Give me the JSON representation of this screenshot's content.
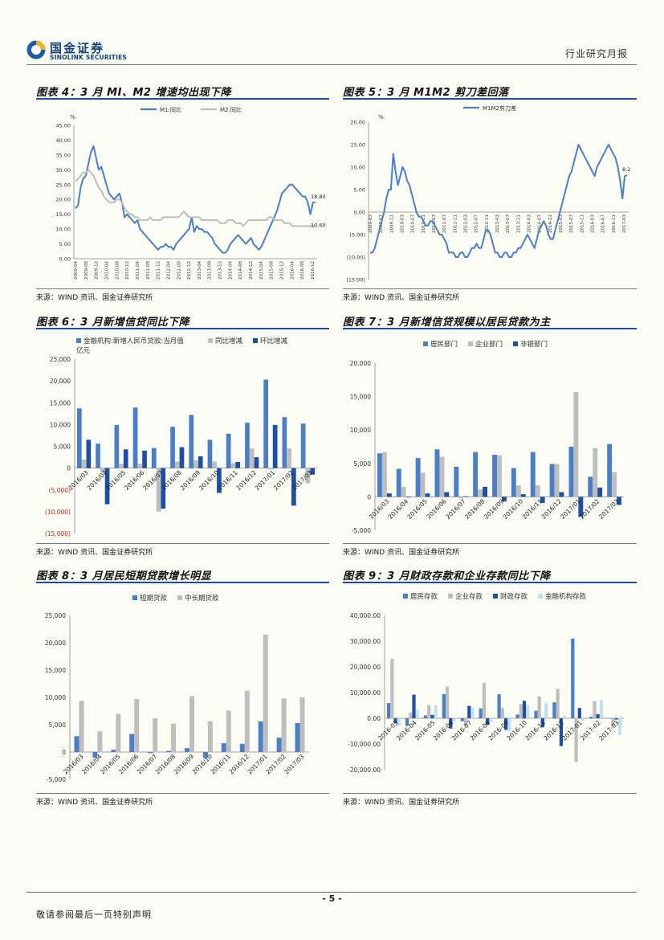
{
  "header": {
    "logo_cn": "国金证券",
    "logo_en": "SINOLINK SECURITIES",
    "report_type": "行业研究月报"
  },
  "figures": [
    {
      "title": "图表 4：3 月 MI、M2 增速均出现下降",
      "source": "来源：WIND 资讯、国金证券研究所"
    },
    {
      "title": "图表 5：3 月 M1M2 剪刀差回落",
      "source": "来源：WIND 资讯、国金证券研究所"
    },
    {
      "title": "图表 6：3 月新增信贷同比下降",
      "source": "来源：WIND 资讯、国金证券研究所"
    },
    {
      "title": "图表 7：3 月新增信贷规模以居民贷款为主",
      "source": "来源：WIND 资讯、国金证券研究所"
    },
    {
      "title": "图表 8：3 月居民短期贷款增长明显",
      "source": "来源：WIND 资讯、国金证券研究所"
    },
    {
      "title": "图表 9：3 月财政存款和企业存款同比下降",
      "source": "来源：WIND 资讯、国金证券研究所"
    }
  ],
  "footer": {
    "page": "- 5 -",
    "disclaimer": "敬请参阅最后一页特别声明"
  },
  "chart_data": [
    {
      "type": "line",
      "unit": "%",
      "series": [
        {
          "name": "M1:同比",
          "color": "#4a7ec8",
          "values": [
            17,
            18,
            24,
            27,
            28,
            32,
            36,
            38,
            34,
            30,
            31,
            28,
            25,
            22,
            21,
            20,
            21,
            22,
            19,
            14,
            15,
            14,
            13,
            12,
            13,
            10,
            9,
            8,
            7,
            6,
            5,
            4,
            3,
            4,
            4,
            5,
            4,
            4,
            3,
            5,
            6,
            7,
            8,
            9,
            10,
            14,
            9,
            11,
            10,
            10,
            9,
            9,
            8,
            7,
            5,
            4,
            3,
            2,
            2,
            3,
            5,
            6,
            7,
            8,
            7,
            6,
            5,
            6,
            7,
            5,
            4,
            3,
            4,
            6,
            8,
            10,
            12,
            14,
            16,
            19,
            22,
            23,
            24,
            25,
            25,
            24,
            23,
            22,
            21,
            21,
            19,
            15,
            19,
            19
          ]
        },
        {
          "name": "M2:同比",
          "color": "#bebebe",
          "values": [
            26,
            27,
            28,
            29,
            29,
            30,
            29,
            28,
            26,
            24,
            23,
            21,
            20,
            19,
            19,
            19,
            20,
            20,
            19,
            17,
            16,
            15,
            15,
            14,
            14,
            13,
            13,
            13,
            13,
            14,
            13,
            13,
            13,
            13,
            14,
            14,
            14,
            14,
            14,
            14,
            14,
            15,
            16,
            15,
            14,
            14,
            14,
            14,
            14,
            13,
            13,
            13,
            13,
            13,
            13,
            13,
            12,
            12,
            12,
            13,
            13,
            13,
            12,
            12,
            12,
            11,
            12,
            13,
            13,
            13,
            13,
            13,
            13,
            13,
            13,
            14,
            14,
            13,
            13,
            13,
            13,
            12,
            12,
            12,
            11,
            11,
            11,
            11,
            11,
            11,
            11,
            11,
            11,
            11
          ]
        }
      ],
      "x_tick_labels": [
        "2009-04",
        "2009-08",
        "2009-12",
        "2010-04",
        "2010-08",
        "2010-12",
        "2011-04",
        "2011-08",
        "2011-12",
        "2012-04",
        "2012-08",
        "2012-12",
        "2013-04",
        "2013-08",
        "2013-12",
        "2014-04",
        "2014-08",
        "2014-12",
        "2015-04",
        "2015-08",
        "2015-12",
        "2016-04",
        "2016-08",
        "2016-12"
      ],
      "y_tick_labels": [
        "0.00",
        "5.00",
        "10.00",
        "15.00",
        "20.00",
        "25.00",
        "30.00",
        "35.00",
        "40.00",
        "45.00"
      ],
      "annotations": [
        "18.80",
        "10.60"
      ],
      "ylim": [
        0,
        45
      ]
    },
    {
      "type": "line",
      "unit": "%",
      "series": [
        {
          "name": "M1M2剪刀差",
          "color": "#4a7ec8",
          "values": [
            -9,
            -9,
            -8,
            -6,
            -4,
            -2,
            0,
            3,
            5,
            5,
            13,
            9,
            6,
            8,
            10,
            9,
            7,
            6,
            4,
            2,
            0,
            -1,
            -1,
            -2,
            -3,
            -3,
            -2,
            -2,
            -3,
            -4,
            -5,
            -5,
            -6,
            -7,
            -9,
            -9,
            -9,
            -10,
            -10,
            -9,
            -9,
            -10,
            -10,
            -9,
            -8,
            -8,
            -7,
            -8,
            -8,
            -6,
            -4,
            -4,
            -5,
            -7,
            -9,
            -9,
            -10,
            -10,
            -9,
            -9,
            -10,
            -10,
            -9,
            -9,
            -8,
            -8,
            -7,
            -6,
            -5,
            -6,
            -7,
            -8,
            -6,
            -4,
            -3,
            -2,
            -3,
            -5,
            -6,
            -6,
            -4,
            -2,
            0,
            2,
            4,
            6,
            8,
            9,
            11,
            13,
            15,
            14,
            13,
            12,
            11,
            10,
            9,
            8,
            10,
            11,
            12,
            13,
            14,
            15,
            14,
            13,
            12,
            10,
            7,
            3,
            8,
            8.2
          ]
        }
      ],
      "x_tick_labels": [
        "2009-03",
        "2009-07",
        "2009-11",
        "2010-03",
        "2010-07",
        "2010-11",
        "2011-03",
        "2011-07",
        "2011-11",
        "2012-03",
        "2012-07",
        "2012-11",
        "2013-03",
        "2013-07",
        "2013-11",
        "2014-03",
        "2014-07",
        "2014-11",
        "2015-03",
        "2015-07",
        "2015-11",
        "2016-03",
        "2016-07",
        "2016-11",
        "2017-03"
      ],
      "y_tick_labels": [
        "(15.00)",
        "(10.00)",
        "(5.00)",
        "0.00",
        "5.00",
        "10.00",
        "15.00",
        "20.00"
      ],
      "annotations": [
        "8.2"
      ],
      "ylim": [
        -15,
        20
      ]
    },
    {
      "type": "bar",
      "unit": "亿元",
      "categories": [
        "2016/03",
        "2016/04",
        "2016/05",
        "2016/06",
        "2016/07",
        "2016/08",
        "2016/09",
        "2016/10",
        "2016/11",
        "2016/12",
        "2017/01",
        "2017/02",
        "2017/03"
      ],
      "series": [
        {
          "name": "金融机构:新增人民币贷款:当月值",
          "color": "#4a7ec8",
          "values": [
            13700,
            5600,
            9900,
            13900,
            4600,
            9500,
            12200,
            6500,
            7900,
            10400,
            20300,
            11700,
            10200
          ]
        },
        {
          "name": "同比增减",
          "color": "#bebebe",
          "values": [
            2000,
            -1000,
            1000,
            1000,
            -10000,
            1500,
            1800,
            1500,
            1100,
            4500,
            -300,
            4500,
            -3500
          ]
        },
        {
          "name": "环比增减",
          "color": "#1e4fa5",
          "values": [
            6500,
            -8300,
            4300,
            4000,
            -9300,
            4800,
            2700,
            -5700,
            1400,
            2500,
            9900,
            -8600,
            -1500
          ]
        }
      ],
      "y_tick_labels": [
        "(15,000)",
        "(10,000)",
        "(5,000)",
        "0",
        "5,000",
        "10,000",
        "15,000",
        "20,000",
        "25,000"
      ],
      "ylim": [
        -15000,
        25000
      ]
    },
    {
      "type": "bar",
      "categories": [
        "2016/03",
        "2016/04",
        "2016/05",
        "2016/06",
        "2016/07",
        "2016/08",
        "2016/09",
        "2016/10",
        "2016/11",
        "2016/12",
        "2017/01",
        "2017/02",
        "2017/03"
      ],
      "series": [
        {
          "name": "居民部门",
          "color": "#4a7ec8",
          "values": [
            6500,
            4200,
            5800,
            7100,
            4500,
            6700,
            6300,
            4300,
            6700,
            4900,
            7500,
            3000,
            7900
          ]
        },
        {
          "name": "企业部门",
          "color": "#bebebe",
          "values": [
            6700,
            1500,
            3600,
            6000,
            -200,
            1100,
            6200,
            1700,
            1700,
            4900,
            15700,
            7300,
            3700
          ]
        },
        {
          "name": "非银部门",
          "color": "#1e4fa5",
          "values": [
            500,
            -100,
            500,
            700,
            100,
            1500,
            -700,
            400,
            -900,
            700,
            -3000,
            1400,
            -1200
          ]
        }
      ],
      "y_tick_labels": [
        "-5,000",
        "0",
        "5,000",
        "10,000",
        "15,000",
        "20,000"
      ],
      "ylim": [
        -5000,
        20000
      ]
    },
    {
      "type": "bar",
      "categories": [
        "2016/03",
        "2016/04",
        "2016/05",
        "2016/06",
        "2016/07",
        "2016/08",
        "2016/09",
        "2016/10",
        "2016/11",
        "2016/12",
        "2017/01",
        "2017/02",
        "2017/03"
      ],
      "series": [
        {
          "name": "短期贷款",
          "color": "#4a7ec8",
          "values": [
            2900,
            -1000,
            400,
            3300,
            -200,
            200,
            700,
            -1100,
            1600,
            1500,
            5600,
            2600,
            5300
          ]
        },
        {
          "name": "中长期贷款",
          "color": "#bebebe",
          "values": [
            9400,
            3800,
            7000,
            9700,
            6200,
            5200,
            10200,
            5600,
            7600,
            11200,
            21500,
            9800,
            10000
          ]
        }
      ],
      "y_tick_labels": [
        "-5,000",
        "0",
        "5,000",
        "10,000",
        "15,000",
        "20,000",
        "25,000"
      ],
      "ylim": [
        -5000,
        25000
      ]
    },
    {
      "type": "bar",
      "categories": [
        "2016-03",
        "2016-04",
        "2016-05",
        "2016-06",
        "2016-07",
        "2016-08",
        "2016-09",
        "2016-10",
        "2016-11",
        "2016-12",
        "2017-01",
        "2017-02",
        "2017-03"
      ],
      "series": [
        {
          "name": "居民存款",
          "color": "#4a7ec8",
          "values": [
            5900,
            -3000,
            1100,
            9400,
            -1200,
            3800,
            9300,
            1400,
            2900,
            6200,
            31000,
            600,
            0
          ]
        },
        {
          "name": "企业存款",
          "color": "#bebebe",
          "values": [
            23200,
            2200,
            5200,
            12300,
            -3000,
            13800,
            4000,
            5500,
            8500,
            11400,
            -17000,
            6700,
            -3000
          ]
        },
        {
          "name": "财政存款",
          "color": "#1e4fa5",
          "values": [
            -2000,
            9200,
            1300,
            -4000,
            4800,
            -2500,
            -4500,
            6800,
            -3500,
            -10800,
            4000,
            1600,
            -500
          ]
        },
        {
          "name": "金融机构存款",
          "color": "#bfe0f5",
          "values": [
            -3000,
            3400,
            5000,
            -1000,
            4000,
            -1500,
            -5000,
            5000,
            6000,
            1000,
            -1000,
            7000,
            -6500
          ]
        }
      ],
      "y_tick_labels": [
        "-20,000.00",
        "-10,000.00",
        "0.00",
        "10,000.00",
        "20,000.00",
        "30,000.00",
        "40,000.00"
      ],
      "ylim": [
        -20000,
        40000
      ]
    }
  ]
}
